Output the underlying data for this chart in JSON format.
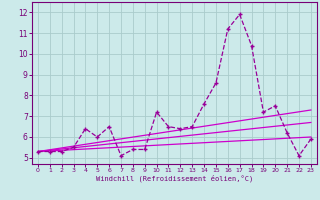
{
  "x": [
    0,
    1,
    2,
    3,
    4,
    5,
    6,
    7,
    8,
    9,
    10,
    11,
    12,
    13,
    14,
    15,
    16,
    17,
    18,
    19,
    20,
    21,
    22,
    23
  ],
  "y_main": [
    5.3,
    5.3,
    5.3,
    5.5,
    6.4,
    6.0,
    6.5,
    5.1,
    5.4,
    5.4,
    7.2,
    6.5,
    6.4,
    6.5,
    7.6,
    8.6,
    11.2,
    11.9,
    10.4,
    7.2,
    7.5,
    6.2,
    5.1,
    5.9
  ],
  "bg_color": "#cceaea",
  "grid_color": "#aacccc",
  "line_color": "#990099",
  "axis_color": "#770077",
  "tick_color": "#770077",
  "xlabel": "Windchill (Refroidissement éolien,°C)",
  "ylabel_ticks": [
    5,
    6,
    7,
    8,
    9,
    10,
    11,
    12
  ],
  "xlim": [
    -0.5,
    23.5
  ],
  "ylim": [
    4.7,
    12.5
  ],
  "xticks": [
    0,
    1,
    2,
    3,
    4,
    5,
    6,
    7,
    8,
    9,
    10,
    11,
    12,
    13,
    14,
    15,
    16,
    17,
    18,
    19,
    20,
    21,
    22,
    23
  ],
  "reg_lines": [
    {
      "x0": 0,
      "y0": 5.3,
      "x1": 23,
      "y1": 6.0
    },
    {
      "x0": 0,
      "y0": 5.3,
      "x1": 23,
      "y1": 6.7
    },
    {
      "x0": 0,
      "y0": 5.3,
      "x1": 23,
      "y1": 7.3
    }
  ],
  "reg_color": "#cc00cc",
  "font_color": "#770077"
}
